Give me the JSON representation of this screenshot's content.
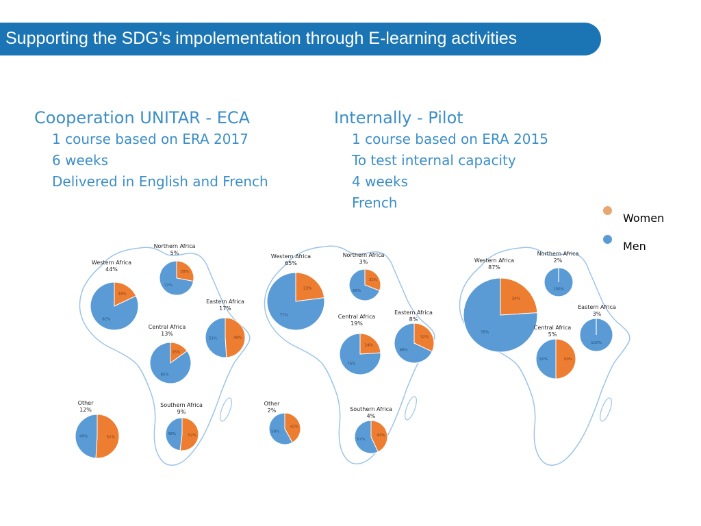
{
  "title": "Supporting the SDG’s impolementation through E-learning activities",
  "left": {
    "heading": "Cooperation UNITAR - ECA",
    "points": [
      "1 course based on ERA 2017",
      "6 weeks",
      "Delivered in English and French"
    ]
  },
  "right": {
    "heading": "Internally - Pilot",
    "points": [
      "1 course based on ERA 2015",
      "To test internal capacity",
      "4 weeks",
      "French"
    ]
  },
  "legend": [
    {
      "label": "Women",
      "color": "#e8a672"
    },
    {
      "label": "Men",
      "color": "#5b9bd5"
    }
  ],
  "colors": {
    "women": "#ed7d31",
    "men": "#5b9bd5",
    "banner": "#1b75b4",
    "heading": "#3c8ec6",
    "outline": "#9dc3e6"
  },
  "chart_data": [
    {
      "type": "pie",
      "series_order": [
        "Women",
        "Men"
      ],
      "regions": [
        {
          "region": "Western Africa",
          "share": "44%",
          "values": [
            18,
            82
          ],
          "labels": [
            "18%",
            "82%"
          ]
        },
        {
          "region": "Northern Africa",
          "share": "5%",
          "values": [
            28,
            72
          ],
          "labels": [
            "28%",
            "72%"
          ]
        },
        {
          "region": "Eastern Africa",
          "share": "17%",
          "values": [
            49,
            51
          ],
          "labels": [
            "49%",
            "51%"
          ]
        },
        {
          "region": "Central Africa",
          "share": "13%",
          "values": [
            15,
            85
          ],
          "labels": [
            "15%",
            "85%"
          ]
        },
        {
          "region": "Southern Africa",
          "share": "9%",
          "values": [
            52,
            48
          ],
          "labels": [
            "52%",
            "48%"
          ]
        },
        {
          "region": "Other",
          "share": "12%",
          "values": [
            51,
            49
          ],
          "labels": [
            "51%",
            "49%"
          ]
        }
      ]
    },
    {
      "type": "pie",
      "series_order": [
        "Women",
        "Men"
      ],
      "regions": [
        {
          "region": "Western Africa",
          "share": "65%",
          "values": [
            23,
            77
          ],
          "labels": [
            "23%",
            "77%"
          ]
        },
        {
          "region": "Northern Africa",
          "share": "3%",
          "values": [
            31,
            69
          ],
          "labels": [
            "31%",
            "69%"
          ]
        },
        {
          "region": "Central Africa",
          "share": "19%",
          "values": [
            24,
            76
          ],
          "labels": [
            "24%",
            "76%"
          ]
        },
        {
          "region": "Eastern Africa",
          "share": "8%",
          "values": [
            32,
            68
          ],
          "labels": [
            "32%",
            "68%"
          ]
        },
        {
          "region": "Southern Africa",
          "share": "4%",
          "values": [
            43,
            57
          ],
          "labels": [
            "43%",
            "57%"
          ]
        },
        {
          "region": "Other",
          "share": "2%",
          "values": [
            42,
            58
          ],
          "labels": [
            "42%",
            "58%"
          ]
        }
      ]
    },
    {
      "type": "pie",
      "series_order": [
        "Women",
        "Men"
      ],
      "regions": [
        {
          "region": "Western Africa",
          "share": "87%",
          "values": [
            24,
            76
          ],
          "labels": [
            "24%",
            "76%"
          ]
        },
        {
          "region": "Northern Africa",
          "share": "2%",
          "values": [
            0,
            100
          ],
          "labels": [
            "",
            "100%"
          ]
        },
        {
          "region": "Eastern Africa",
          "share": "3%",
          "values": [
            0,
            100
          ],
          "labels": [
            "",
            "100%"
          ]
        },
        {
          "region": "Central Africa",
          "share": "5%",
          "values": [
            50,
            50
          ],
          "labels": [
            "50%",
            "50%"
          ]
        }
      ]
    }
  ]
}
